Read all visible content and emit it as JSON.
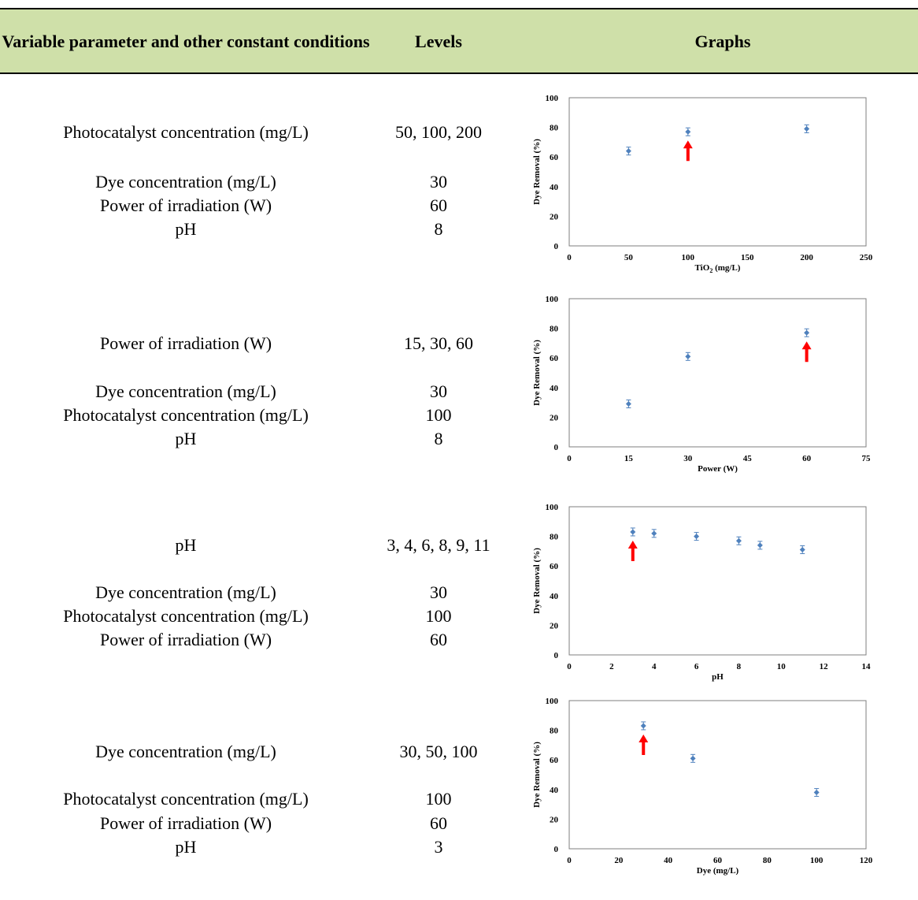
{
  "header": {
    "col1": "Variable parameter and other constant conditions",
    "col2": "Levels",
    "col3": "Graphs"
  },
  "rows": [
    {
      "variable": "Photocatalyst concentration (mg/L)",
      "levels": "50, 100, 200",
      "constants": [
        {
          "name": "Dye concentration (mg/L)",
          "value": "30"
        },
        {
          "name": "Power of irradiation (W)",
          "value": "60"
        },
        {
          "name": "pH",
          "value": "8"
        }
      ]
    },
    {
      "variable": "Power of irradiation (W)",
      "levels": "15, 30, 60",
      "constants": [
        {
          "name": "Dye concentration (mg/L)",
          "value": "30"
        },
        {
          "name": "Photocatalyst concentration (mg/L)",
          "value": "100"
        },
        {
          "name": "pH",
          "value": "8"
        }
      ]
    },
    {
      "variable": "pH",
      "levels": "3, 4, 6, 8, 9, 11",
      "constants": [
        {
          "name": "Dye concentration (mg/L)",
          "value": "30"
        },
        {
          "name": "Photocatalyst concentration (mg/L)",
          "value": "100"
        },
        {
          "name": "Power of irradiation (W)",
          "value": "60"
        }
      ]
    },
    {
      "variable": "Dye concentration (mg/L)",
      "levels": "30, 50, 100",
      "constants": [
        {
          "name": "Photocatalyst concentration (mg/L)",
          "value": "100"
        },
        {
          "name": "Power of irradiation (W)",
          "value": "60"
        },
        {
          "name": "pH",
          "value": "3"
        }
      ]
    }
  ],
  "chart_data": [
    {
      "type": "scatter",
      "xlabel": "TiO2 (mg/L)",
      "ylabel": "Dye Removal (%)",
      "xlim": [
        0,
        250
      ],
      "ylim": [
        0,
        100
      ],
      "xticks": [
        0,
        50,
        100,
        150,
        200,
        250
      ],
      "yticks": [
        0,
        20,
        40,
        60,
        80,
        100
      ],
      "x": [
        50,
        100,
        200
      ],
      "y": [
        64,
        77,
        79
      ],
      "arrow_at_x": 100,
      "marker_color": "#4f81bd",
      "arrow_color": "#ff0000"
    },
    {
      "type": "scatter",
      "xlabel": "Power (W)",
      "ylabel": "Dye Removal (%)",
      "xlim": [
        0,
        75
      ],
      "ylim": [
        0,
        100
      ],
      "xticks": [
        0,
        15,
        30,
        45,
        60,
        75
      ],
      "yticks": [
        0,
        20,
        40,
        60,
        80,
        100
      ],
      "x": [
        15,
        30,
        60
      ],
      "y": [
        29,
        61,
        77
      ],
      "arrow_at_x": 60,
      "marker_color": "#4f81bd",
      "arrow_color": "#ff0000"
    },
    {
      "type": "scatter",
      "xlabel": "pH",
      "ylabel": "Dye Removal (%)",
      "xlim": [
        0,
        14
      ],
      "ylim": [
        0,
        100
      ],
      "xticks": [
        0,
        2,
        4,
        6,
        8,
        10,
        12,
        14
      ],
      "yticks": [
        0,
        20,
        40,
        60,
        80,
        100
      ],
      "x": [
        3,
        4,
        6,
        8,
        9,
        11
      ],
      "y": [
        83,
        82,
        80,
        77,
        74,
        71
      ],
      "arrow_at_x": 3,
      "marker_color": "#4f81bd",
      "arrow_color": "#ff0000"
    },
    {
      "type": "scatter",
      "xlabel": "Dye (mg/L)",
      "ylabel": "Dye Removal (%)",
      "xlim": [
        0,
        120
      ],
      "ylim": [
        0,
        100
      ],
      "xticks": [
        0,
        20,
        40,
        60,
        80,
        100,
        120
      ],
      "yticks": [
        0,
        20,
        40,
        60,
        80,
        100
      ],
      "x": [
        30,
        50,
        100
      ],
      "y": [
        83,
        61,
        38
      ],
      "arrow_at_x": 30,
      "marker_color": "#4f81bd",
      "arrow_color": "#ff0000"
    }
  ]
}
